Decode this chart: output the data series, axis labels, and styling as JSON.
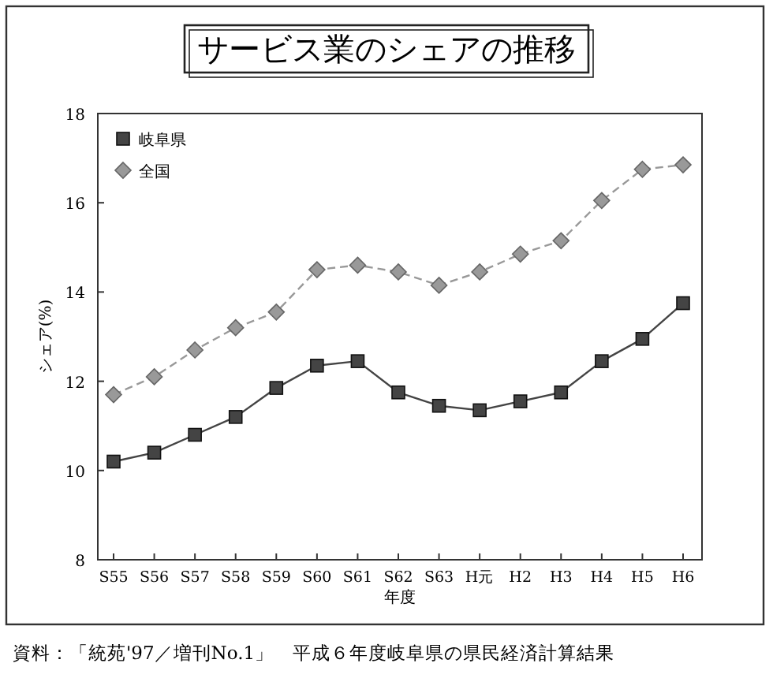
{
  "chart_data": {
    "type": "line",
    "title": "サービス業のシェアの推移",
    "xlabel": "年度",
    "ylabel": "シェア(%)",
    "categories": [
      "S55",
      "S56",
      "S57",
      "S58",
      "S59",
      "S60",
      "S61",
      "S62",
      "S63",
      "H元",
      "H2",
      "H3",
      "H4",
      "H5",
      "H6"
    ],
    "series": [
      {
        "name": "岐阜県",
        "color": "#444444",
        "marker": "square",
        "line_style": "solid",
        "values": [
          10.2,
          10.4,
          10.8,
          11.2,
          11.85,
          12.35,
          12.45,
          11.75,
          11.45,
          11.35,
          11.55,
          11.75,
          12.45,
          12.95,
          13.75
        ]
      },
      {
        "name": "全国",
        "color": "#999999",
        "marker": "diamond",
        "line_style": "dashed",
        "values": [
          11.7,
          12.1,
          12.7,
          13.2,
          13.55,
          14.5,
          14.6,
          14.45,
          14.15,
          14.45,
          14.85,
          15.15,
          16.05,
          16.75,
          16.85
        ]
      }
    ],
    "ylim": [
      8,
      18
    ],
    "yticks": [
      8,
      10,
      12,
      14,
      16,
      18
    ],
    "grid": false,
    "legend": "top left",
    "annotations": [
      "資料：「統苑'97／増刊No.1」　平成６年度岐阜県の県民経済計算結果"
    ]
  }
}
